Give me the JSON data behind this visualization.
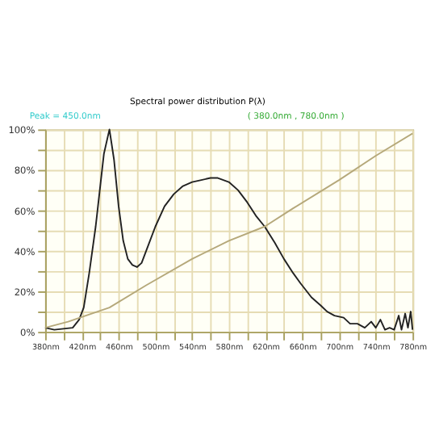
{
  "chart_data": {
    "type": "line",
    "title": "Spectral power distribution P(λ)",
    "annotations": [
      "Peak = 450.0nm",
      "( 380.0nm , 780.0nm )"
    ],
    "xlim": [
      380,
      780
    ],
    "xticks": [
      {
        "value": 380,
        "label": "380nm"
      },
      {
        "value": 400,
        "label": null
      },
      {
        "value": 420,
        "label": "420nm"
      },
      {
        "value": 440,
        "label": null
      },
      {
        "value": 460,
        "label": "460nm"
      },
      {
        "value": 480,
        "label": null
      },
      {
        "value": 500,
        "label": "500nm"
      },
      {
        "value": 520,
        "label": null
      },
      {
        "value": 540,
        "label": "540nm"
      },
      {
        "value": 560,
        "label": null
      },
      {
        "value": 580,
        "label": "580nm"
      },
      {
        "value": 600,
        "label": null
      },
      {
        "value": 620,
        "label": "620nm"
      },
      {
        "value": 640,
        "label": null
      },
      {
        "value": 660,
        "label": "660nm"
      },
      {
        "value": 680,
        "label": null
      },
      {
        "value": 700,
        "label": "700nm"
      },
      {
        "value": 720,
        "label": null
      },
      {
        "value": 740,
        "label": "740nm"
      },
      {
        "value": 760,
        "label": null
      },
      {
        "value": 780,
        "label": "780nm"
      }
    ],
    "ylim": [
      0,
      100
    ],
    "yticks": [
      {
        "value": 0,
        "label": "0%"
      },
      {
        "value": 10,
        "label": null
      },
      {
        "value": 20,
        "label": "20%"
      },
      {
        "value": 30,
        "label": null
      },
      {
        "value": 40,
        "label": "40%"
      },
      {
        "value": 50,
        "label": null
      },
      {
        "value": 60,
        "label": "60%"
      },
      {
        "value": 70,
        "label": null
      },
      {
        "value": 80,
        "label": "80%"
      },
      {
        "value": 90,
        "label": null
      },
      {
        "value": 100,
        "label": "100%"
      }
    ],
    "grid": true,
    "marker": "none",
    "line_style": "solid",
    "series": [
      {
        "color": "#222222",
        "x": [
          380,
          390,
          400,
          410,
          417,
          422,
          428,
          435,
          439,
          444,
          450,
          455,
          460,
          465,
          470,
          475,
          480,
          485,
          490,
          500,
          510,
          520,
          530,
          540,
          550,
          560,
          568,
          580,
          590,
          600,
          610,
          619,
          630,
          640,
          650,
          658,
          670,
          680,
          687,
          695,
          705,
          712,
          720,
          728,
          735,
          740,
          745,
          750,
          755,
          760,
          765,
          768,
          772,
          775,
          778,
          780
        ],
        "values": [
          2,
          1,
          1.5,
          2,
          6,
          12,
          29,
          52,
          68,
          88,
          100,
          85,
          62,
          45,
          36,
          33,
          32,
          34,
          40,
          52,
          62,
          68,
          72,
          74,
          75,
          76,
          76,
          74,
          70,
          64,
          57,
          52,
          44,
          36,
          29,
          24,
          17,
          13,
          10,
          8,
          7,
          4,
          4,
          2,
          5,
          2,
          6,
          1,
          2,
          1,
          8,
          1,
          9,
          2,
          10,
          1
        ]
      },
      {
        "color": "#b5a87a",
        "x": [
          380,
          405,
          450,
          490,
          540,
          580,
          619,
          650,
          700,
          740,
          780
        ],
        "values": [
          2,
          5,
          12,
          23,
          36,
          45,
          52,
          61,
          75,
          87,
          98
        ]
      }
    ]
  }
}
